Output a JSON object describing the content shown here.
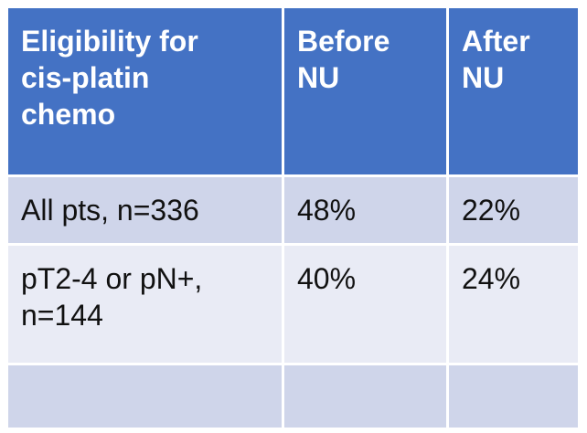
{
  "table": {
    "header": [
      "Eligibility for cis-platin chemo",
      "Before NU",
      "After NU"
    ],
    "rows": [
      [
        "All pts, n=336",
        "48%",
        "22%"
      ],
      [
        "pT2-4 or pN+, n=144",
        "40%",
        "24%"
      ],
      [
        "",
        "",
        ""
      ]
    ]
  }
}
